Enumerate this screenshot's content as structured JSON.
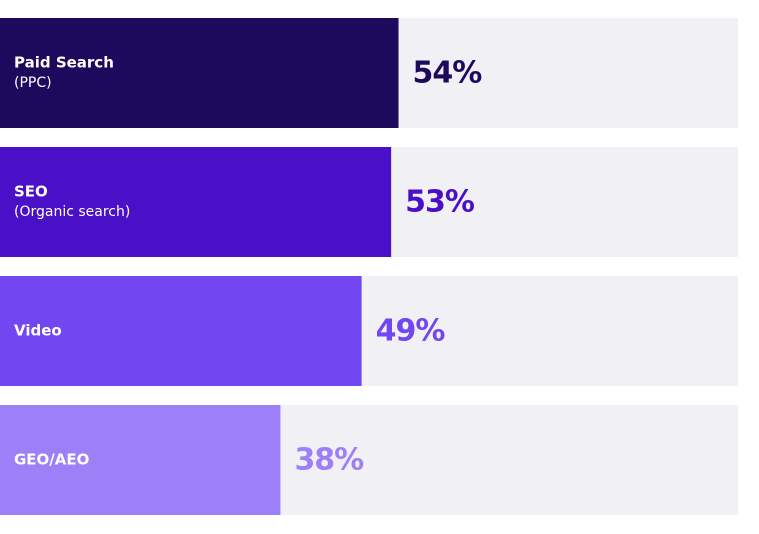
{
  "chart_data": {
    "type": "bar",
    "orientation": "horizontal",
    "categories": [
      "Paid Search",
      "SEO",
      "Video",
      "GEO/AEO"
    ],
    "category_notes": [
      "(PPC)",
      "(Organic search)",
      null,
      null
    ],
    "values": [
      54,
      53,
      49,
      38
    ],
    "value_labels": [
      "54%",
      "53%",
      "49%",
      "38%"
    ],
    "colors": [
      "#1e0a5c",
      "#4a10c8",
      "#7246f0",
      "#9d80f8"
    ],
    "track_color": "#f1f1f5",
    "xlim": [
      0,
      100
    ]
  }
}
